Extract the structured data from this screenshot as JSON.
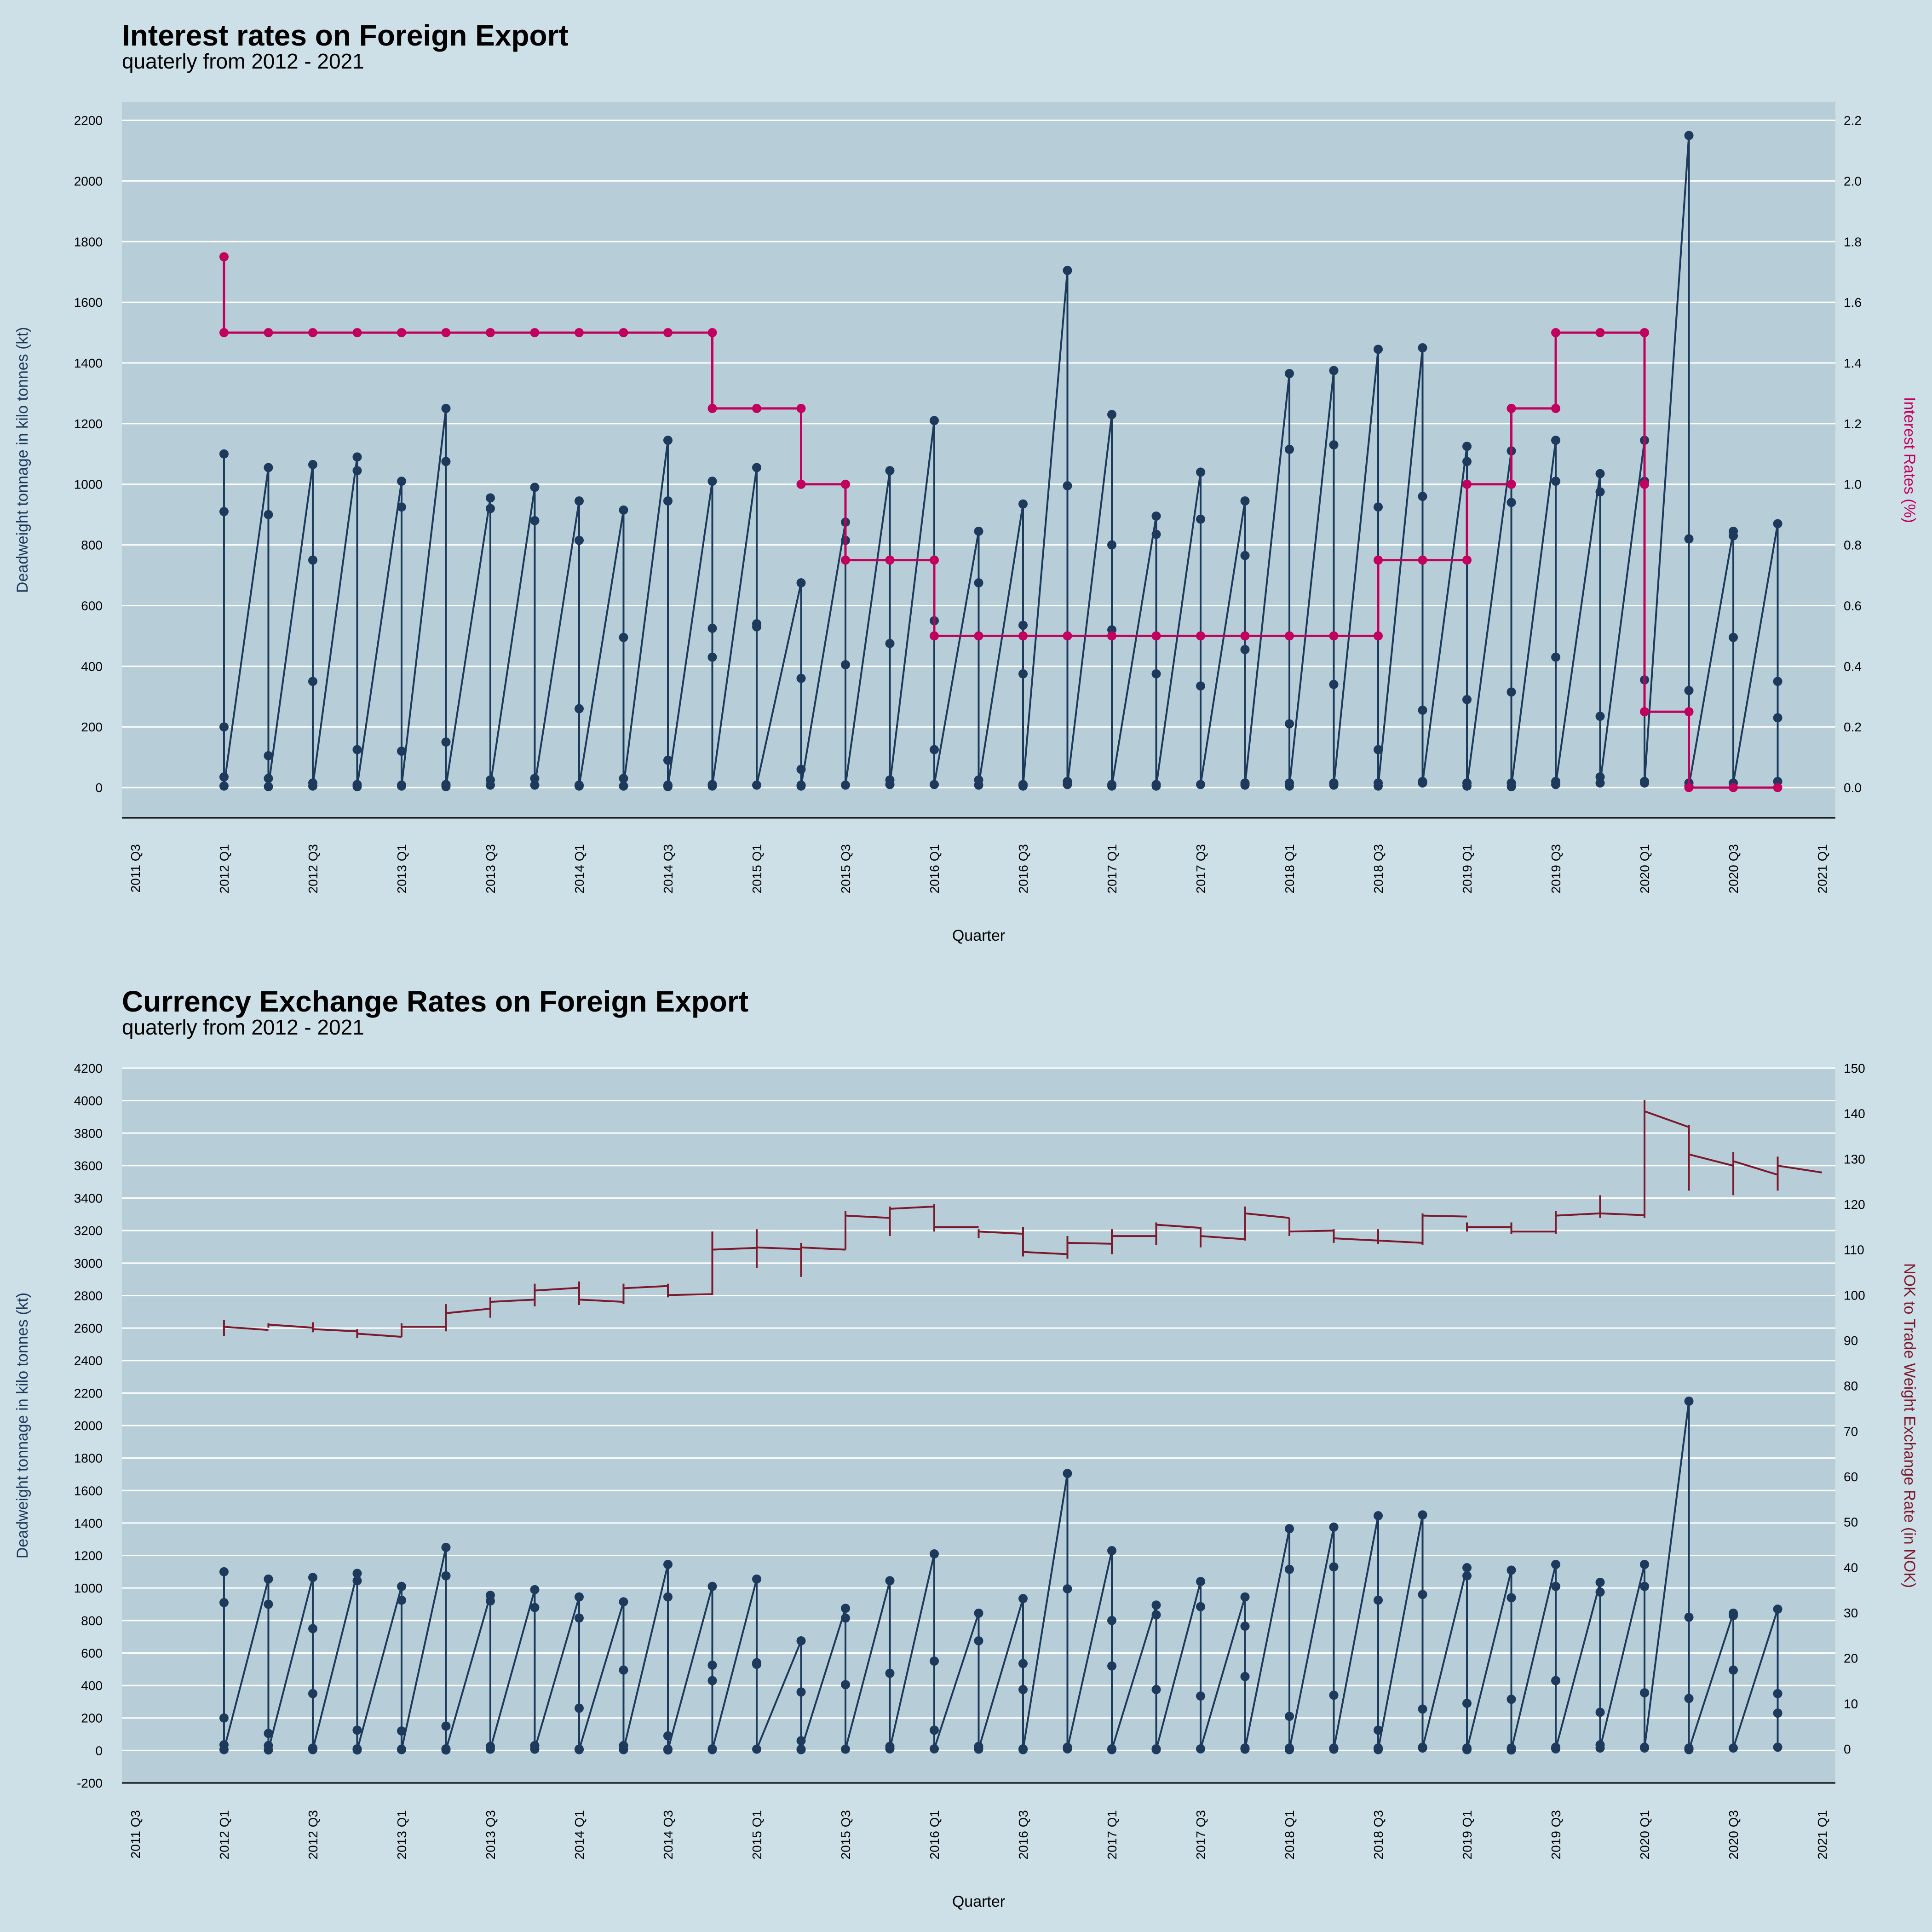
{
  "colors": {
    "page_background": "#cde0e8",
    "panel_background": "#b7ced8",
    "grid": "#ffffff",
    "tonnage": "#1d3a5c",
    "interest": "#c2005e",
    "exchange": "#7b1a2e"
  },
  "chart_data": [
    {
      "type": "line",
      "title": "Interest rates on Foreign Export",
      "subtitle": "quaterly from 2012 - 2021",
      "xlabel": "Quarter",
      "ylabel": "Deadweight tonnage in kilo tonnes (kt)",
      "y2label": "Interest Rates (%)",
      "ylim": [
        -100,
        2260
      ],
      "y2lim": [
        -0.1,
        2.26
      ],
      "yticks": [
        0,
        200,
        400,
        600,
        800,
        1000,
        1200,
        1400,
        1600,
        1800,
        2000,
        2200
      ],
      "y2ticks": [
        "0.0",
        "0.2",
        "0.4",
        "0.6",
        "0.8",
        "1.0",
        "1.2",
        "1.4",
        "1.6",
        "1.8",
        "2.0",
        "2.2"
      ],
      "xlim_quarter_index": [
        -2.3,
        36.3
      ],
      "xticks": [
        "2011 Q3",
        "2012 Q1",
        "2012 Q3",
        "2013 Q1",
        "2013 Q3",
        "2014 Q1",
        "2014 Q3",
        "2015 Q1",
        "2015 Q3",
        "2016 Q1",
        "2016 Q3",
        "2017 Q1",
        "2017 Q3",
        "2018 Q1",
        "2018 Q3",
        "2019 Q1",
        "2019 Q3",
        "2020 Q1",
        "2020 Q3",
        "2021 Q1"
      ],
      "grid": true,
      "legend": "none",
      "series": [
        {
          "x": [
            "2012 Q1",
            "2012 Q2",
            "2012 Q3",
            "2012 Q4",
            "2013 Q1",
            "2013 Q2",
            "2013 Q3",
            "2013 Q4",
            "2014 Q1",
            "2014 Q2",
            "2014 Q3",
            "2014 Q4",
            "2015 Q1",
            "2015 Q2",
            "2015 Q3",
            "2015 Q4",
            "2016 Q1",
            "2016 Q2",
            "2016 Q3",
            "2016 Q4",
            "2017 Q1",
            "2017 Q2",
            "2017 Q3",
            "2017 Q4",
            "2018 Q1",
            "2018 Q2",
            "2018 Q3",
            "2018 Q4",
            "2019 Q1",
            "2019 Q2",
            "2019 Q3",
            "2019 Q4",
            "2020 Q1",
            "2020 Q2",
            "2020 Q3",
            "2020 Q4"
          ],
          "values": [
            [
              1100,
              910,
              200,
              35,
              5
            ],
            [
              1055,
              900,
              105,
              30,
              3
            ],
            [
              1065,
              750,
              350,
              15,
              5
            ],
            [
              1090,
              1045,
              125,
              10,
              3
            ],
            [
              1010,
              925,
              120,
              8,
              5
            ],
            [
              1250,
              1075,
              150,
              10,
              3
            ],
            [
              955,
              920,
              25,
              8
            ],
            [
              990,
              880,
              30,
              8
            ],
            [
              945,
              815,
              260,
              8,
              5
            ],
            [
              915,
              495,
              30,
              5
            ],
            [
              1145,
              945,
              90,
              8,
              3
            ],
            [
              1010,
              525,
              430,
              10,
              5
            ],
            [
              1055,
              540,
              530,
              8
            ],
            [
              675,
              360,
              60,
              8,
              5
            ],
            [
              875,
              815,
              405,
              8
            ],
            [
              1045,
              475,
              25,
              10
            ],
            [
              1210,
              550,
              125,
              10
            ],
            [
              845,
              675,
              25,
              8
            ],
            [
              935,
              535,
              375,
              10,
              5
            ],
            [
              1705,
              995,
              20,
              10
            ],
            [
              1230,
              800,
              520,
              10,
              5
            ],
            [
              895,
              835,
              375,
              10,
              5
            ],
            [
              1040,
              885,
              335,
              10
            ],
            [
              945,
              765,
              455,
              15,
              8
            ],
            [
              1365,
              1115,
              210,
              15,
              5
            ],
            [
              1375,
              1130,
              340,
              15,
              8
            ],
            [
              1445,
              925,
              125,
              15,
              5
            ],
            [
              1450,
              960,
              255,
              20,
              15
            ],
            [
              1125,
              1075,
              290,
              15,
              5
            ],
            [
              1110,
              940,
              315,
              15,
              3
            ],
            [
              1145,
              1010,
              430,
              20,
              10
            ],
            [
              1035,
              975,
              235,
              35,
              15
            ],
            [
              1145,
              1010,
              355,
              20,
              15
            ],
            [
              2150,
              820,
              320,
              15,
              5
            ],
            [
              845,
              830,
              495,
              15
            ],
            [
              870,
              350,
              230,
              20
            ]
          ]
        },
        {
          "name": "Interest Rates (%)",
          "axis": "y2",
          "x": [
            "2012 Q1",
            "2012 Q1",
            "2012 Q2",
            "2012 Q3",
            "2012 Q4",
            "2013 Q1",
            "2013 Q2",
            "2013 Q3",
            "2013 Q4",
            "2014 Q1",
            "2014 Q2",
            "2014 Q3",
            "2014 Q4",
            "2014 Q4",
            "2015 Q1",
            "2015 Q2",
            "2015 Q2",
            "2015 Q3",
            "2015 Q3",
            "2015 Q4",
            "2016 Q1",
            "2016 Q1",
            "2016 Q2",
            "2016 Q3",
            "2016 Q4",
            "2017 Q1",
            "2017 Q2",
            "2017 Q3",
            "2017 Q4",
            "2018 Q1",
            "2018 Q2",
            "2018 Q3",
            "2018 Q3",
            "2018 Q4",
            "2019 Q1",
            "2019 Q1",
            "2019 Q2",
            "2019 Q2",
            "2019 Q3",
            "2019 Q3",
            "2019 Q4",
            "2020 Q1",
            "2020 Q1",
            "2020 Q1",
            "2020 Q2",
            "2020 Q2",
            "2020 Q3",
            "2020 Q4"
          ],
          "values": [
            1.75,
            1.5,
            1.5,
            1.5,
            1.5,
            1.5,
            1.5,
            1.5,
            1.5,
            1.5,
            1.5,
            1.5,
            1.5,
            1.25,
            1.25,
            1.25,
            1.0,
            1.0,
            0.75,
            0.75,
            0.75,
            0.5,
            0.5,
            0.5,
            0.5,
            0.5,
            0.5,
            0.5,
            0.5,
            0.5,
            0.5,
            0.5,
            0.75,
            0.75,
            0.75,
            1.0,
            1.0,
            1.25,
            1.25,
            1.5,
            1.5,
            1.5,
            1.0,
            0.25,
            0.25,
            0.0,
            0.0,
            0.0
          ]
        }
      ]
    },
    {
      "type": "line",
      "title": "Currency Exchange Rates on Foreign Export",
      "subtitle": "quaterly from 2012 - 2021",
      "xlabel": "Quarter",
      "ylabel": "Deadweight tonnage in kilo tonnes (kt)",
      "y2label": "NOK to Trade Weight Exchange Rate (in NOK)",
      "ylim": [
        -200,
        4200
      ],
      "y2lim": [
        -7.5,
        150
      ],
      "yticks": [
        -200,
        0,
        200,
        400,
        600,
        800,
        1000,
        1200,
        1400,
        1600,
        1800,
        2000,
        2200,
        2400,
        2600,
        2800,
        3000,
        3200,
        3400,
        3600,
        3800,
        4000,
        4200
      ],
      "y2ticks": [
        0,
        10,
        20,
        30,
        40,
        50,
        60,
        70,
        80,
        90,
        100,
        110,
        120,
        130,
        140,
        150
      ],
      "xlim_quarter_index": [
        -2.3,
        36.3
      ],
      "xticks": [
        "2011 Q3",
        "2012 Q1",
        "2012 Q3",
        "2013 Q1",
        "2013 Q3",
        "2014 Q1",
        "2014 Q3",
        "2015 Q1",
        "2015 Q3",
        "2016 Q1",
        "2016 Q3",
        "2017 Q1",
        "2017 Q3",
        "2018 Q1",
        "2018 Q3",
        "2019 Q1",
        "2019 Q3",
        "2020 Q1",
        "2020 Q3",
        "2021 Q1"
      ],
      "grid": true,
      "legend": "none",
      "exchange_rate": {
        "axis": "y2",
        "quarters": [
          "2012 Q1",
          "2012 Q2",
          "2012 Q3",
          "2012 Q4",
          "2013 Q1",
          "2013 Q2",
          "2013 Q3",
          "2013 Q4",
          "2014 Q1",
          "2014 Q2",
          "2014 Q3",
          "2014 Q4",
          "2015 Q1",
          "2015 Q2",
          "2015 Q3",
          "2015 Q4",
          "2016 Q1",
          "2016 Q2",
          "2016 Q3",
          "2016 Q4",
          "2017 Q1",
          "2017 Q2",
          "2017 Q3",
          "2017 Q4",
          "2018 Q1",
          "2018 Q2",
          "2018 Q3",
          "2018 Q4",
          "2019 Q1",
          "2019 Q2",
          "2019 Q3",
          "2019 Q4",
          "2020 Q1",
          "2020 Q2",
          "2020 Q3",
          "2020 Q4"
        ],
        "start": [
          93.0,
          93.5,
          92.5,
          91.5,
          93.0,
          96.0,
          98.5,
          101.0,
          99.0,
          101.5,
          100.0,
          110.0,
          110.5,
          110.5,
          117.5,
          119.0,
          115.0,
          114.0,
          109.5,
          111.5,
          113.0,
          115.5,
          113.0,
          118.0,
          114.0,
          112.5,
          112.0,
          117.5,
          115.0,
          114.0,
          117.5,
          118.0,
          140.5,
          131.0,
          129.5,
          128.5
        ],
        "end": [
          92.3,
          92.8,
          92.0,
          90.8,
          93.0,
          97.0,
          99.0,
          101.6,
          98.5,
          102.0,
          100.2,
          110.4,
          110.1,
          110.0,
          117.0,
          119.5,
          115.0,
          113.5,
          109.0,
          111.3,
          113.0,
          114.8,
          112.3,
          117.0,
          114.2,
          112.0,
          111.5,
          117.3,
          115.0,
          114.0,
          118.0,
          117.6,
          137.0,
          128.5,
          126.5,
          127.0
        ],
        "low": [
          91.0,
          92.8,
          91.8,
          90.5,
          90.8,
          92.0,
          95.0,
          97.5,
          97.8,
          98.0,
          99.5,
          100.0,
          106.0,
          104.0,
          110.0,
          113.0,
          114.0,
          112.5,
          108.5,
          108.0,
          109.0,
          111.0,
          110.5,
          112.0,
          113.0,
          111.5,
          111.2,
          111.0,
          114.0,
          113.5,
          113.5,
          117.0,
          117.0,
          123.0,
          122.0,
          123.0
        ],
        "high": [
          94.5,
          93.8,
          94.0,
          92.5,
          93.8,
          98.0,
          99.5,
          102.5,
          103.0,
          102.5,
          102.5,
          114.0,
          114.5,
          111.5,
          118.5,
          119.5,
          120.0,
          114.5,
          115.0,
          113.0,
          114.5,
          116.0,
          115.0,
          119.5,
          117.0,
          114.5,
          114.5,
          118.0,
          116.0,
          116.0,
          118.5,
          122.0,
          143.0,
          137.5,
          131.5,
          130.5
        ]
      },
      "series": [
        {
          "x": [
            "2012 Q1",
            "2012 Q2",
            "2012 Q3",
            "2012 Q4",
            "2013 Q1",
            "2013 Q2",
            "2013 Q3",
            "2013 Q4",
            "2014 Q1",
            "2014 Q2",
            "2014 Q3",
            "2014 Q4",
            "2015 Q1",
            "2015 Q2",
            "2015 Q3",
            "2015 Q4",
            "2016 Q1",
            "2016 Q2",
            "2016 Q3",
            "2016 Q4",
            "2017 Q1",
            "2017 Q2",
            "2017 Q3",
            "2017 Q4",
            "2018 Q1",
            "2018 Q2",
            "2018 Q3",
            "2018 Q4",
            "2019 Q1",
            "2019 Q2",
            "2019 Q3",
            "2019 Q4",
            "2020 Q1",
            "2020 Q2",
            "2020 Q3",
            "2020 Q4"
          ],
          "values": [
            [
              1100,
              910,
              200,
              35,
              5
            ],
            [
              1055,
              900,
              105,
              30,
              3
            ],
            [
              1065,
              750,
              350,
              15,
              5
            ],
            [
              1090,
              1045,
              125,
              10,
              3
            ],
            [
              1010,
              925,
              120,
              8,
              5
            ],
            [
              1250,
              1075,
              150,
              10,
              3
            ],
            [
              955,
              920,
              25,
              8
            ],
            [
              990,
              880,
              30,
              8
            ],
            [
              945,
              815,
              260,
              8,
              5
            ],
            [
              915,
              495,
              30,
              5
            ],
            [
              1145,
              945,
              90,
              8,
              3
            ],
            [
              1010,
              525,
              430,
              10,
              5
            ],
            [
              1055,
              540,
              530,
              8
            ],
            [
              675,
              360,
              60,
              8,
              5
            ],
            [
              875,
              815,
              405,
              8
            ],
            [
              1045,
              475,
              25,
              10
            ],
            [
              1210,
              550,
              125,
              10
            ],
            [
              845,
              675,
              25,
              8
            ],
            [
              935,
              535,
              375,
              10,
              5
            ],
            [
              1705,
              995,
              20,
              10
            ],
            [
              1230,
              800,
              520,
              10,
              5
            ],
            [
              895,
              835,
              375,
              10,
              5
            ],
            [
              1040,
              885,
              335,
              10
            ],
            [
              945,
              765,
              455,
              15,
              8
            ],
            [
              1365,
              1115,
              210,
              15,
              5
            ],
            [
              1375,
              1130,
              340,
              15,
              8
            ],
            [
              1445,
              925,
              125,
              15,
              5
            ],
            [
              1450,
              960,
              255,
              20,
              15
            ],
            [
              1125,
              1075,
              290,
              15,
              5
            ],
            [
              1110,
              940,
              315,
              15,
              3
            ],
            [
              1145,
              1010,
              430,
              20,
              10
            ],
            [
              1035,
              975,
              235,
              35,
              15
            ],
            [
              1145,
              1010,
              355,
              20,
              15
            ],
            [
              2150,
              820,
              320,
              15,
              5
            ],
            [
              845,
              830,
              495,
              15
            ],
            [
              870,
              350,
              230,
              20
            ]
          ]
        }
      ]
    }
  ]
}
